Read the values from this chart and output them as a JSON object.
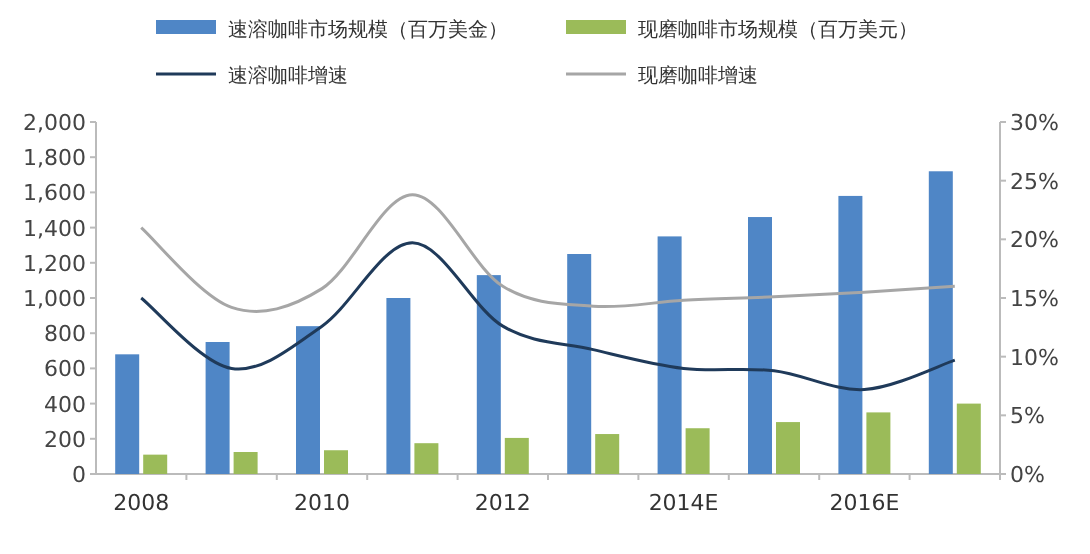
{
  "chart_data": {
    "type": "bar",
    "categories": [
      "2008",
      null,
      "2010",
      null,
      "2012",
      null,
      "2014E",
      null,
      "2016E",
      null
    ],
    "series": [
      {
        "name": "速溶咖啡市场规模（百万美金）",
        "color": "#4f86c6",
        "values": [
          680,
          750,
          840,
          1000,
          1130,
          1250,
          1350,
          1460,
          1580,
          1720
        ]
      },
      {
        "name": "现磨咖啡市场规模（百万美元）",
        "color": "#9bbb59",
        "values": [
          110,
          125,
          135,
          175,
          205,
          227,
          260,
          295,
          350,
          400
        ]
      },
      {
        "name": "速溶咖啡增速",
        "type": "line",
        "axis": "y2",
        "color": "#1f3a5a",
        "values": [
          15,
          9,
          12.6,
          19.7,
          12.6,
          10.6,
          9,
          8.8,
          7.2,
          9.7
        ]
      },
      {
        "name": "现磨咖啡增速",
        "type": "line",
        "axis": "y2",
        "color": "#a6a6a6",
        "values": [
          21,
          14.2,
          15.8,
          23.8,
          16,
          14.3,
          14.8,
          15.1,
          15.5,
          16
        ]
      }
    ],
    "ylim": [
      0,
      2000
    ],
    "yticks": [
      0,
      200,
      400,
      600,
      800,
      {
        "value": 1000,
        "label": "1,000"
      },
      {
        "value": 1200,
        "label": "1,200"
      },
      {
        "value": 1400,
        "label": "1,400"
      },
      {
        "value": 1600,
        "label": "1,600"
      },
      {
        "value": 1800,
        "label": "1,800"
      },
      {
        "value": 2000,
        "label": "2,000"
      }
    ],
    "y2lim": [
      0,
      30
    ],
    "y2ticks": [
      {
        "value": 0,
        "label": "0%"
      },
      {
        "value": 5,
        "label": "5%"
      },
      {
        "value": 10,
        "label": "10%"
      },
      {
        "value": 15,
        "label": "15%"
      },
      {
        "value": 20,
        "label": "20%"
      },
      {
        "value": 25,
        "label": "25%"
      },
      {
        "value": 30,
        "label": "30%"
      }
    ],
    "legend": "top",
    "grid": false
  }
}
